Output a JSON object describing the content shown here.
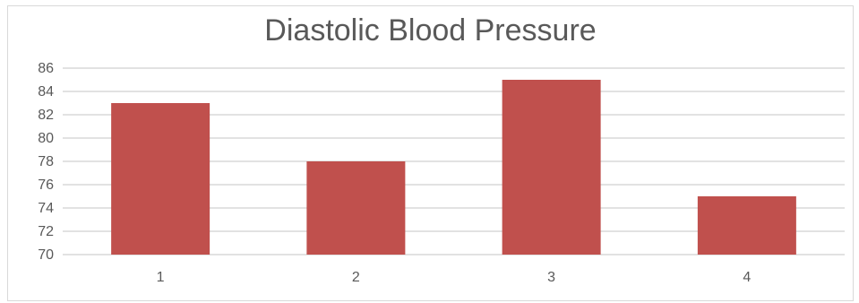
{
  "chart_data": {
    "type": "bar",
    "title": "Diastolic Blood Pressure",
    "xlabel": "",
    "ylabel": "",
    "categories": [
      "1",
      "2",
      "3",
      "4"
    ],
    "series": [
      {
        "values": [
          83,
          78,
          85,
          75
        ]
      }
    ],
    "ylim": [
      70,
      86
    ],
    "yticks": [
      70,
      72,
      74,
      76,
      78,
      80,
      82,
      84,
      86
    ],
    "grid": true,
    "legend": "none",
    "bar_color": "#c0504d",
    "grid_color": "#d9d9d9"
  }
}
